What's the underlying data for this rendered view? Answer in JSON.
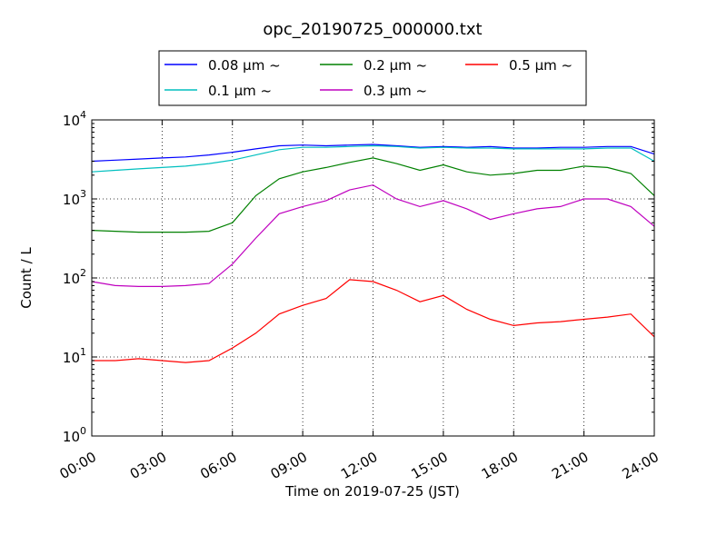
{
  "chart_data": {
    "type": "line",
    "title": "opc_20190725_000000.txt",
    "xlabel": "Time on 2019-07-25 (JST)",
    "ylabel": "Count / L",
    "x_ticks": [
      "00:00",
      "03:00",
      "06:00",
      "09:00",
      "12:00",
      "15:00",
      "18:00",
      "21:00",
      "24:00"
    ],
    "y_ticks": [
      {
        "base": "10",
        "exp": "0"
      },
      {
        "base": "10",
        "exp": "1"
      },
      {
        "base": "10",
        "exp": "2"
      },
      {
        "base": "10",
        "exp": "3"
      },
      {
        "base": "10",
        "exp": "4"
      }
    ],
    "x_unit": "hours",
    "xlim": [
      0,
      24
    ],
    "ylim": [
      1,
      10000
    ],
    "yscale": "log",
    "grid": true,
    "legend_position": "top-center",
    "series": [
      {
        "name": "0.08 μm ~",
        "color": "#0000ff",
        "x": [
          0,
          1,
          2,
          3,
          4,
          5,
          6,
          7,
          8,
          9,
          10,
          11,
          12,
          13,
          14,
          15,
          16,
          17,
          18,
          19,
          20,
          21,
          22,
          23,
          24
        ],
        "values": [
          3000,
          3100,
          3200,
          3300,
          3400,
          3600,
          3900,
          4300,
          4700,
          4800,
          4700,
          4800,
          4900,
          4700,
          4500,
          4600,
          4500,
          4600,
          4400,
          4400,
          4500,
          4500,
          4600,
          4600,
          3700
        ]
      },
      {
        "name": "0.1 μm ~",
        "color": "#00bfbf",
        "x": [
          0,
          1,
          2,
          3,
          4,
          5,
          6,
          7,
          8,
          9,
          10,
          11,
          12,
          13,
          14,
          15,
          16,
          17,
          18,
          19,
          20,
          21,
          22,
          23,
          24
        ],
        "values": [
          2200,
          2300,
          2400,
          2500,
          2600,
          2800,
          3100,
          3600,
          4200,
          4500,
          4500,
          4600,
          4700,
          4600,
          4400,
          4500,
          4400,
          4400,
          4300,
          4300,
          4300,
          4300,
          4400,
          4400,
          3000
        ]
      },
      {
        "name": "0.2 μm ~",
        "color": "#008000",
        "x": [
          0,
          1,
          2,
          3,
          4,
          5,
          6,
          7,
          8,
          9,
          10,
          11,
          12,
          13,
          14,
          15,
          16,
          17,
          18,
          19,
          20,
          21,
          22,
          23,
          24
        ],
        "values": [
          400,
          390,
          380,
          380,
          380,
          390,
          500,
          1100,
          1800,
          2200,
          2500,
          2900,
          3300,
          2800,
          2300,
          2700,
          2200,
          2000,
          2100,
          2300,
          2300,
          2600,
          2500,
          2100,
          1100
        ]
      },
      {
        "name": "0.3 μm ~",
        "color": "#bf00bf",
        "x": [
          0,
          1,
          2,
          3,
          4,
          5,
          6,
          7,
          8,
          9,
          10,
          11,
          12,
          13,
          14,
          15,
          16,
          17,
          18,
          19,
          20,
          21,
          22,
          23,
          24
        ],
        "values": [
          90,
          80,
          78,
          78,
          80,
          85,
          150,
          320,
          650,
          800,
          950,
          1300,
          1500,
          1000,
          800,
          950,
          750,
          550,
          650,
          750,
          800,
          1000,
          1000,
          800,
          450
        ]
      },
      {
        "name": "0.5 μm ~",
        "color": "#ff0000",
        "x": [
          0,
          1,
          2,
          3,
          4,
          5,
          6,
          7,
          8,
          9,
          10,
          11,
          12,
          13,
          14,
          15,
          16,
          17,
          18,
          19,
          20,
          21,
          22,
          23,
          24
        ],
        "values": [
          9,
          9,
          9.5,
          9,
          8.5,
          9,
          13,
          20,
          35,
          45,
          55,
          95,
          90,
          70,
          50,
          60,
          40,
          30,
          25,
          27,
          28,
          30,
          32,
          35,
          18
        ]
      }
    ]
  }
}
